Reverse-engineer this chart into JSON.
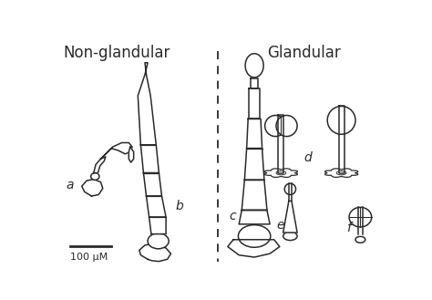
{
  "title_left": "Non-glandular",
  "title_right": "Glandular",
  "scale_bar_text": "100 μM",
  "bg_color": "#ffffff",
  "line_color": "#2a2a2a",
  "lw": 1.1,
  "figsize": [
    4.74,
    3.29
  ],
  "dpi": 100
}
